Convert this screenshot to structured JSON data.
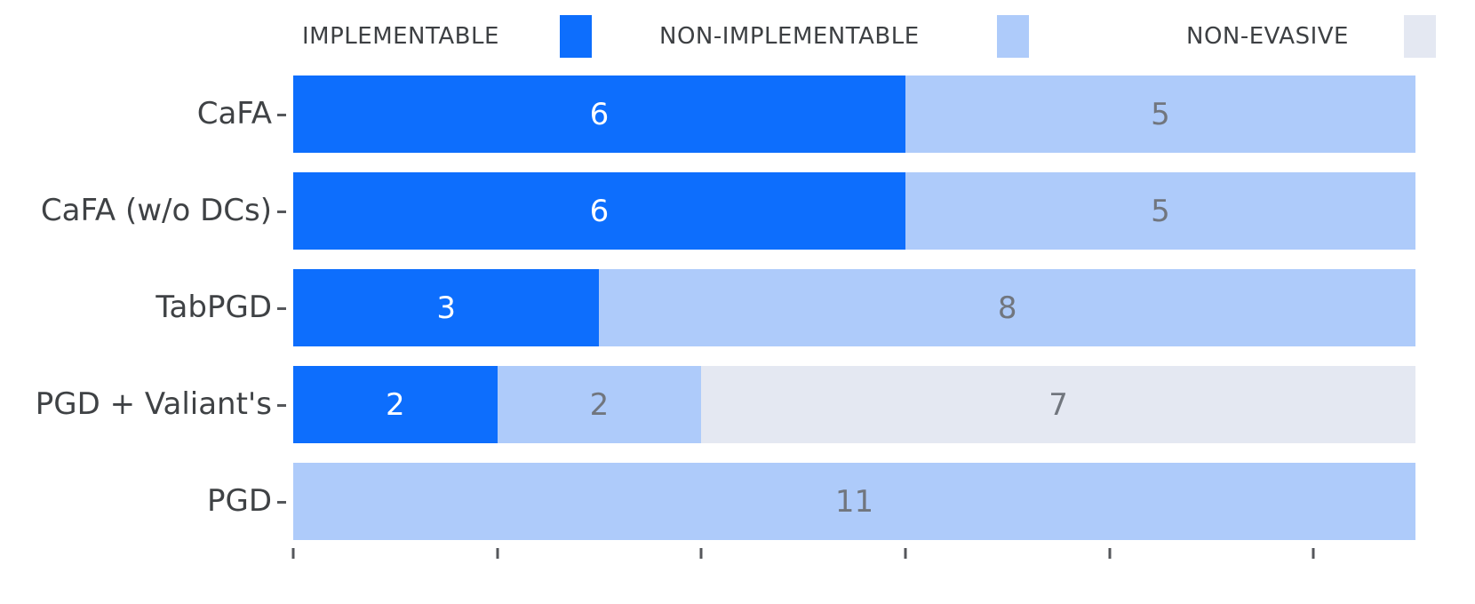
{
  "chart_data": {
    "type": "bar",
    "orientation": "horizontal",
    "stacked": true,
    "categories": [
      "CaFA",
      "CaFA (w/o DCs)",
      "TabPGD",
      "PGD + Valiant's",
      "PGD"
    ],
    "series": [
      {
        "name": "IMPLEMENTABLE",
        "color": "#0d6efd",
        "label_color": "#ffffff",
        "values": [
          6,
          6,
          3,
          2,
          0
        ]
      },
      {
        "name": "NON-IMPLEMENTABLE",
        "color": "#aecbfa",
        "label_color": "#71767e",
        "values": [
          5,
          5,
          8,
          2,
          11
        ]
      },
      {
        "name": "NON-EVASIVE",
        "color": "#e4e8f2",
        "label_color": "#71767e",
        "values": [
          0,
          0,
          0,
          7,
          0
        ]
      }
    ],
    "totals_per_category": [
      11,
      11,
      11,
      11,
      11
    ],
    "xlim": [
      0,
      11
    ],
    "x_ticks": [
      0,
      2,
      4,
      6,
      8,
      10
    ],
    "legend_position": "top",
    "grid": false,
    "bar_value_labels": true
  },
  "style": {
    "background": "#ffffff",
    "category_label_color": "#3f4245",
    "legend_text_color": "#3d4043",
    "axis_tick_color": "#55575b"
  }
}
